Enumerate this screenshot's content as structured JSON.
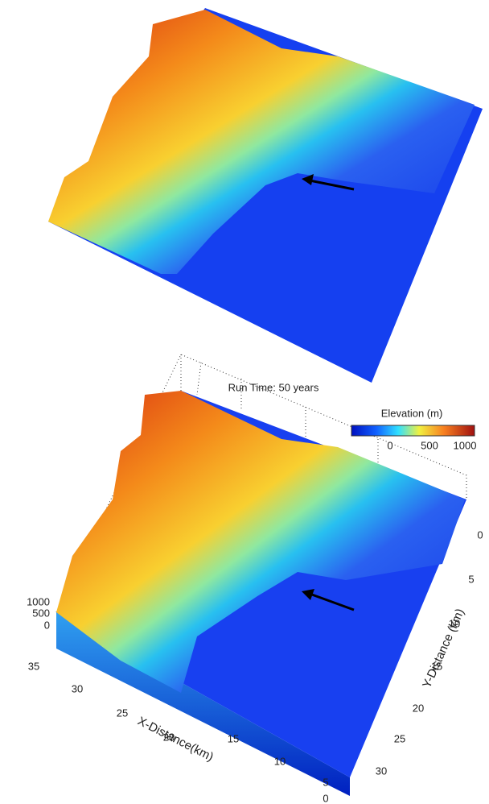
{
  "title": "Run Time: 50 years",
  "colorbar": {
    "label": "Elevation (m)",
    "ticks": [
      "0",
      "500",
      "1000"
    ]
  },
  "z_axis": {
    "ticks": [
      "1000",
      "500",
      "0"
    ]
  },
  "x_axis": {
    "label": "X-Distance(km)",
    "ticks": [
      "35",
      "30",
      "25",
      "20",
      "15",
      "10",
      "5"
    ]
  },
  "y_axis": {
    "label": "Y-Distance (km)",
    "ticks": [
      "0",
      "5",
      "10",
      "15",
      "20",
      "25",
      "30"
    ]
  },
  "corner_tick": "0"
}
